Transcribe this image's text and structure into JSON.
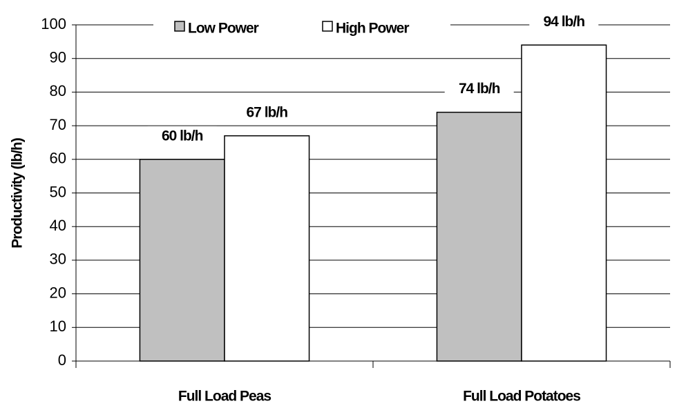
{
  "chart_data": {
    "type": "bar",
    "y_label": "Productivity (lb/h)",
    "categories": [
      "Full Load Peas",
      "Full Load Potatoes"
    ],
    "series": [
      {
        "name": "Low Power",
        "color": "#c0c0c0",
        "values": [
          60,
          74
        ],
        "value_labels": [
          "60 lb/h",
          "74 lb/h"
        ]
      },
      {
        "name": "High Power",
        "color": "#ffffff",
        "values": [
          67,
          94
        ],
        "value_labels": [
          "67 lb/h",
          "94 lb/h"
        ]
      }
    ],
    "ylim": [
      0,
      100
    ],
    "yticks": [
      0,
      10,
      20,
      30,
      40,
      50,
      60,
      70,
      80,
      90,
      100
    ],
    "grid": true,
    "legend": "top"
  }
}
